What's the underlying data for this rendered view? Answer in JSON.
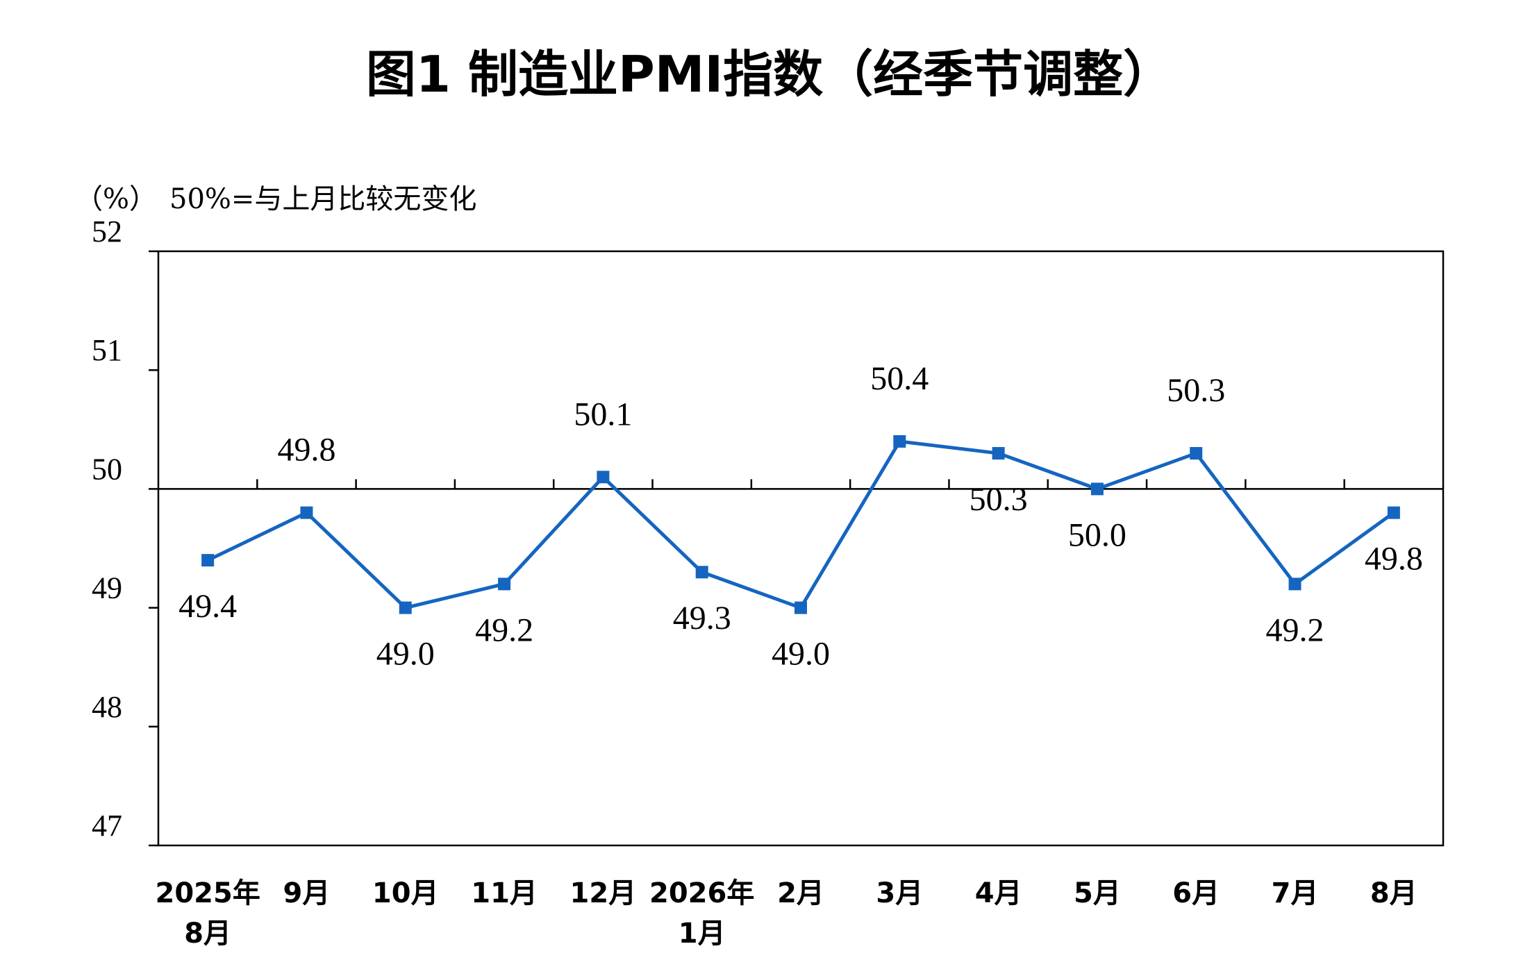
{
  "title": "图1 制造业PMI指数（经季节调整）",
  "unit_label": "（%）",
  "note": "50%=与上月比较无变化",
  "colors": {
    "line": "#1565C0",
    "marker": "#1565C0",
    "axis": "#000000",
    "reference": "#000000"
  },
  "chart_data": {
    "type": "line",
    "title": "图1 制造业PMI指数（经季节调整）",
    "xlabel": "",
    "ylabel": "（%）",
    "ylim": [
      47,
      52
    ],
    "yticks": [
      "47",
      "48",
      "49",
      "50",
      "51",
      "52"
    ],
    "reference_line": 50,
    "grid": false,
    "legend": "none",
    "categories": [
      [
        "2025年",
        "8月"
      ],
      [
        "9月"
      ],
      [
        "10月"
      ],
      [
        "11月"
      ],
      [
        "12月"
      ],
      [
        "2026年",
        "1月"
      ],
      [
        "2月"
      ],
      [
        "3月"
      ],
      [
        "4月"
      ],
      [
        "5月"
      ],
      [
        "6月"
      ],
      [
        "7月"
      ],
      [
        "8月"
      ]
    ],
    "values": [
      49.4,
      49.8,
      49.0,
      49.2,
      50.1,
      49.3,
      49.0,
      50.4,
      50.3,
      50.0,
      50.3,
      49.2,
      49.8
    ],
    "data_labels": [
      "49.4",
      "49.8",
      "49.0",
      "49.2",
      "50.1",
      "49.3",
      "49.0",
      "50.4",
      "50.3",
      "50.0",
      "50.3",
      "49.2",
      "49.8"
    ]
  }
}
